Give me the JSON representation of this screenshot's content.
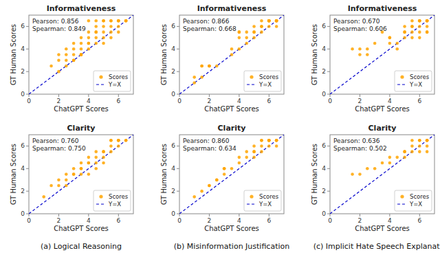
{
  "chart_data": [
    {
      "type": "scatter",
      "title": "Informativeness",
      "xlabel": "ChatGPT Scores",
      "ylabel": "GT Human Scores",
      "xlim": [
        0,
        7
      ],
      "ylim": [
        0,
        7
      ],
      "xticks": [
        0,
        2,
        4,
        6
      ],
      "yticks": [
        0,
        2,
        4,
        6
      ],
      "grid": false,
      "legend": "lower right",
      "annotations": [
        "Pearson: 0.856",
        "Spearman: 0.849"
      ],
      "series": [
        {
          "name": "Scores",
          "type": "scatter",
          "color": "#FFA500",
          "marker": "circle",
          "x": [
            1.5,
            2.0,
            2.0,
            2.5,
            2.5,
            2.5,
            3.0,
            3.0,
            3.0,
            3.0,
            3.5,
            3.5,
            3.5,
            3.5,
            3.5,
            4.0,
            4.0,
            4.0,
            4.0,
            4.0,
            4.5,
            4.5,
            4.5,
            4.5,
            4.5,
            5.0,
            5.0,
            5.0,
            5.0,
            5.0,
            5.5,
            5.5,
            5.5,
            5.5,
            5.5,
            6.0,
            6.0,
            6.0,
            6.0,
            6.0,
            6.5,
            6.5,
            6.5,
            2.0,
            2.5,
            3.0,
            3.5,
            4.0,
            4.5,
            5.0
          ],
          "values": [
            2.5,
            3.0,
            3.5,
            3.0,
            3.5,
            4.0,
            3.0,
            3.5,
            4.0,
            4.5,
            3.5,
            3.5,
            4.0,
            4.5,
            5.0,
            4.0,
            4.5,
            5.0,
            5.5,
            6.5,
            4.5,
            5.0,
            5.5,
            6.0,
            6.5,
            4.5,
            5.0,
            5.5,
            6.0,
            6.5,
            5.0,
            5.5,
            6.0,
            6.5,
            6.5,
            5.5,
            6.0,
            6.5,
            6.5,
            6.5,
            6.5,
            6.5,
            6.5,
            2.0,
            2.5,
            3.0,
            3.5,
            4.5,
            5.5,
            6.5
          ]
        },
        {
          "name": "Y=X",
          "type": "line",
          "color": "#0000CC",
          "line_style": "dashed",
          "x": [
            0,
            7
          ],
          "values": [
            0,
            7
          ]
        }
      ]
    },
    {
      "type": "scatter",
      "title": "Informativeness",
      "xlabel": "ChatGPT Scores",
      "ylabel": "GT Human Scores",
      "xlim": [
        0,
        7
      ],
      "ylim": [
        0,
        7
      ],
      "xticks": [
        0,
        2,
        4,
        6
      ],
      "yticks": [
        0,
        2,
        4,
        6
      ],
      "grid": false,
      "legend": "lower right",
      "annotations": [
        "Pearson: 0.866",
        "Spearman: 0.668"
      ],
      "series": [
        {
          "name": "Scores",
          "type": "scatter",
          "color": "#FFA500",
          "marker": "circle",
          "x": [
            1.0,
            1.5,
            1.5,
            2.0,
            2.0,
            2.5,
            3.5,
            3.5,
            4.0,
            4.0,
            4.5,
            4.5,
            5.0,
            5.0,
            5.0,
            5.5,
            5.5,
            5.5,
            6.0,
            6.0,
            6.0,
            6.0,
            6.0,
            6.5,
            6.5,
            6.5,
            6.5,
            6.5,
            4.0,
            4.5,
            5.0,
            5.5,
            6.0,
            6.5,
            1.0,
            1.5,
            2.0,
            4.0
          ],
          "values": [
            1.5,
            2.5,
            2.5,
            2.5,
            2.5,
            2.5,
            3.5,
            4.0,
            5.0,
            5.5,
            5.0,
            5.5,
            5.0,
            5.5,
            6.0,
            5.5,
            6.0,
            6.5,
            6.0,
            6.5,
            6.5,
            6.5,
            6.5,
            6.0,
            6.5,
            6.5,
            6.5,
            6.5,
            4.0,
            4.5,
            5.5,
            6.0,
            6.5,
            6.5,
            1.0,
            1.5,
            2.5,
            5.5
          ]
        },
        {
          "name": "Y=X",
          "type": "line",
          "color": "#0000CC",
          "line_style": "dashed",
          "x": [
            0,
            7
          ],
          "values": [
            0,
            7
          ]
        }
      ]
    },
    {
      "type": "scatter",
      "title": "Informativeness",
      "xlabel": "ChatGPT Scores",
      "ylabel": "GT Human Scores",
      "xlim": [
        0,
        7
      ],
      "ylim": [
        0,
        7
      ],
      "xticks": [
        0,
        2,
        4,
        6
      ],
      "yticks": [
        0,
        2,
        4,
        6
      ],
      "grid": false,
      "legend": "lower right",
      "annotations": [
        "Pearson: 0.670",
        "Spearman: 0.606"
      ],
      "series": [
        {
          "name": "Scores",
          "type": "scatter",
          "color": "#FFA500",
          "marker": "circle",
          "x": [
            1.5,
            2.0,
            2.5,
            3.5,
            4.0,
            4.0,
            4.5,
            4.5,
            5.0,
            5.0,
            5.0,
            5.5,
            5.5,
            5.5,
            5.5,
            6.0,
            6.0,
            6.0,
            6.0,
            6.0,
            6.5,
            6.5,
            6.5,
            6.5,
            6.5,
            6.5,
            2.0,
            2.5,
            3.0,
            4.0,
            5.0,
            5.5,
            6.0,
            6.5
          ],
          "values": [
            4.0,
            3.5,
            4.0,
            5.5,
            4.5,
            5.0,
            4.0,
            4.5,
            5.0,
            5.5,
            6.0,
            5.0,
            5.5,
            6.0,
            6.5,
            5.0,
            5.5,
            6.0,
            6.5,
            6.5,
            5.5,
            6.0,
            6.5,
            6.5,
            5.5,
            6.5,
            4.0,
            3.5,
            4.5,
            5.0,
            5.5,
            6.0,
            6.5,
            6.5
          ]
        },
        {
          "name": "Y=X",
          "type": "line",
          "color": "#0000CC",
          "line_style": "dashed",
          "x": [
            0,
            7
          ],
          "values": [
            0,
            7
          ]
        }
      ]
    },
    {
      "type": "scatter",
      "title": "Clarity",
      "xlabel": "ChatGPT Scores",
      "ylabel": "GT Human Scores",
      "xlim": [
        0,
        7
      ],
      "ylim": [
        0,
        7
      ],
      "xticks": [
        0,
        2,
        4,
        6
      ],
      "yticks": [
        0,
        2,
        4,
        6
      ],
      "grid": false,
      "legend": "lower right",
      "annotations": [
        "Pearson: 0.760",
        "Spearman: 0.750",
        "(a) Logical Reasoning"
      ],
      "series": [
        {
          "name": "Scores",
          "type": "scatter",
          "color": "#FFA500",
          "marker": "circle",
          "x": [
            1.0,
            1.5,
            2.0,
            2.5,
            2.5,
            3.0,
            3.0,
            3.5,
            3.5,
            3.5,
            4.0,
            4.0,
            4.0,
            4.5,
            4.5,
            4.5,
            5.0,
            5.0,
            5.0,
            5.5,
            5.5,
            5.5,
            6.0,
            6.0,
            6.0,
            6.5,
            6.5,
            2.0,
            2.5,
            3.0,
            3.5,
            4.0,
            4.5,
            5.0,
            5.5,
            6.0
          ],
          "values": [
            1.5,
            2.5,
            3.0,
            2.5,
            3.5,
            3.5,
            4.0,
            3.5,
            4.0,
            4.5,
            3.5,
            4.5,
            5.0,
            4.0,
            4.5,
            5.5,
            4.5,
            5.0,
            5.5,
            5.5,
            6.0,
            6.5,
            6.0,
            6.5,
            6.5,
            6.5,
            6.5,
            2.5,
            3.0,
            3.5,
            4.0,
            4.5,
            5.0,
            5.5,
            6.5,
            6.5
          ]
        },
        {
          "name": "Y=X",
          "type": "line",
          "color": "#0000CC",
          "line_style": "dashed",
          "x": [
            0,
            7
          ],
          "values": [
            0,
            7
          ]
        }
      ]
    },
    {
      "type": "scatter",
      "title": "Clarity",
      "xlabel": "ChatGPT Scores",
      "ylabel": "GT Human Scores",
      "xlim": [
        0,
        7
      ],
      "ylim": [
        0,
        7
      ],
      "xticks": [
        0,
        2,
        4,
        6
      ],
      "yticks": [
        0,
        2,
        4,
        6
      ],
      "grid": false,
      "legend": "lower right",
      "annotations": [
        "Pearson: 0.860",
        "Spearman: 0.634",
        "(b) Misinformation Justification"
      ],
      "series": [
        {
          "name": "Scores",
          "type": "scatter",
          "color": "#FFA500",
          "marker": "circle",
          "x": [
            1.0,
            1.5,
            2.0,
            2.5,
            3.0,
            3.0,
            3.5,
            4.0,
            4.5,
            4.5,
            5.0,
            5.0,
            5.0,
            5.5,
            5.5,
            5.5,
            6.0,
            6.0,
            6.0,
            6.0,
            6.5,
            6.5,
            6.5,
            6.5,
            2.0,
            2.5,
            3.0,
            4.0,
            5.0,
            5.5,
            6.0
          ],
          "values": [
            1.5,
            2.0,
            2.5,
            3.0,
            3.5,
            4.0,
            4.0,
            4.5,
            5.0,
            5.5,
            5.0,
            5.5,
            6.0,
            5.5,
            6.0,
            6.5,
            6.0,
            6.5,
            6.5,
            6.5,
            6.0,
            6.5,
            6.5,
            6.5,
            2.5,
            3.0,
            4.0,
            5.0,
            5.5,
            6.5,
            6.5
          ]
        },
        {
          "name": "Y=X",
          "type": "line",
          "color": "#0000CC",
          "line_style": "dashed",
          "x": [
            0,
            7
          ],
          "values": [
            0,
            7
          ]
        }
      ]
    },
    {
      "type": "scatter",
      "title": "Clarity",
      "xlabel": "ChatGPT Scores",
      "ylabel": "GT Human Scores",
      "xlim": [
        0,
        7
      ],
      "ylim": [
        0,
        7
      ],
      "xticks": [
        0,
        2,
        4,
        6
      ],
      "yticks": [
        0,
        2,
        4,
        6
      ],
      "grid": false,
      "legend": "lower right",
      "annotations": [
        "Pearson: 0.636",
        "Spearman: 0.502",
        "(c) Implicit Hate Speech Explanation"
      ],
      "series": [
        {
          "name": "Scores",
          "type": "scatter",
          "color": "#FFA500",
          "marker": "circle",
          "x": [
            1.5,
            2.0,
            2.5,
            3.5,
            4.0,
            4.5,
            5.0,
            5.0,
            5.5,
            5.5,
            6.0,
            6.0,
            6.0,
            6.5,
            6.5,
            6.5,
            6.5,
            3.0,
            4.0,
            5.0,
            5.5,
            6.0,
            6.5
          ],
          "values": [
            3.5,
            3.5,
            4.0,
            4.5,
            4.5,
            5.0,
            5.0,
            5.5,
            5.5,
            6.0,
            5.5,
            6.0,
            6.5,
            6.0,
            6.5,
            6.5,
            5.5,
            4.0,
            5.0,
            5.5,
            6.5,
            6.5,
            6.5
          ]
        },
        {
          "name": "Y=X",
          "type": "line",
          "color": "#0000CC",
          "line_style": "dashed",
          "x": [
            0,
            7
          ],
          "values": [
            0,
            7
          ]
        }
      ]
    }
  ]
}
